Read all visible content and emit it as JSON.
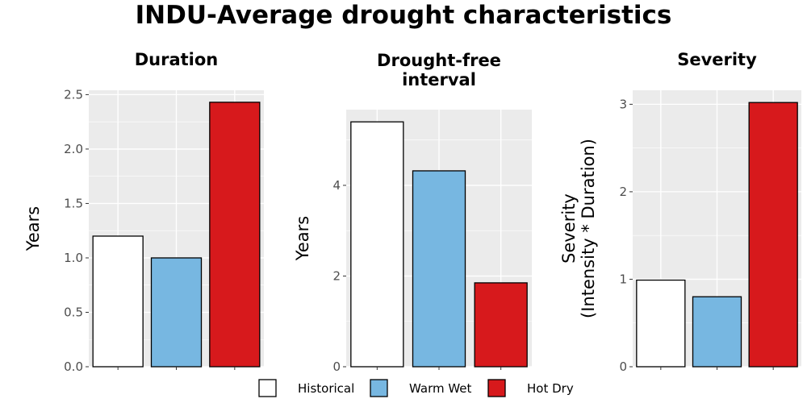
{
  "title": "INDU-Average drought characteristics",
  "chart_data": [
    {
      "type": "bar",
      "title": "Duration",
      "ylabel": [
        "Years"
      ],
      "categories": [
        "Historical",
        "Warm Wet",
        "Hot Dry"
      ],
      "values": [
        1.2,
        1.0,
        2.43
      ],
      "ylim": [
        0,
        2.54
      ],
      "yticks": [
        "0.0",
        "0.5",
        "1.0",
        "1.5",
        "2.0",
        "2.5"
      ],
      "ytick_values": [
        0,
        0.5,
        1.0,
        1.5,
        2.0,
        2.5
      ],
      "grid": true
    },
    {
      "type": "bar",
      "title": [
        "Drought-free",
        "interval"
      ],
      "ylabel": [
        "Years"
      ],
      "categories": [
        "Historical",
        "Warm Wet",
        "Hot Dry"
      ],
      "values": [
        5.4,
        4.32,
        1.85
      ],
      "ylim": [
        0,
        5.67
      ],
      "yticks": [
        "0",
        "2",
        "4"
      ],
      "ytick_values": [
        0,
        2,
        4
      ],
      "grid": true
    },
    {
      "type": "bar",
      "title": "Severity",
      "ylabel": [
        "Severity",
        "(Intensity * Duration)"
      ],
      "categories": [
        "Historical",
        "Warm Wet",
        "Hot Dry"
      ],
      "values": [
        0.99,
        0.8,
        3.02
      ],
      "ylim": [
        0,
        3.16
      ],
      "yticks": [
        "0",
        "1",
        "2",
        "3"
      ],
      "ytick_values": [
        0,
        1,
        2,
        3
      ],
      "grid": true
    }
  ],
  "legend": {
    "placement": "bottom",
    "items": [
      {
        "label": "Historical",
        "color": "#ffffff"
      },
      {
        "label": "Warm Wet",
        "color": "#77b7e1"
      },
      {
        "label": "Hot Dry",
        "color": "#d7191c"
      }
    ]
  },
  "colors": {
    "panel_bg": "#ebebeb",
    "grid": "#ffffff",
    "bar_outline": "#000000"
  }
}
